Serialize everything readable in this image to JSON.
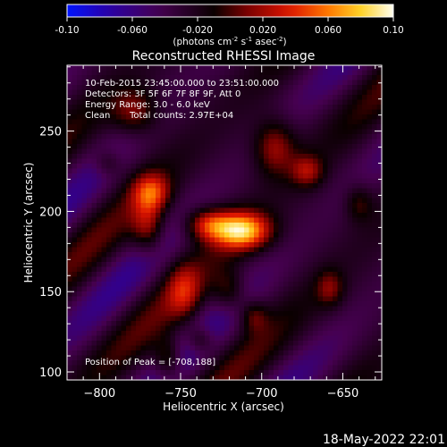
{
  "colorbar": {
    "ticks": [
      "-0.10",
      "-0.060",
      "-0.020",
      "0.020",
      "0.060",
      "0.10"
    ],
    "tick_values": [
      -0.1,
      -0.06,
      -0.02,
      0.02,
      0.06,
      0.1
    ],
    "range": [
      -0.1,
      0.1
    ],
    "units": "(photons cm",
    "units_exp1": "-2",
    "units_mid": " s",
    "units_exp2": "-1",
    "units_mid2": " asec",
    "units_exp3": "-2",
    "units_end": ")"
  },
  "title": "Reconstructed RHESSI Image",
  "info": {
    "time_range": "10-Feb-2015 23:45:00.000 to 23:51:00.000",
    "detectors": "Detectors: 3F 5F 6F 7F 8F 9F, Att 0",
    "energy": "Energy Range: 3.0 - 6.0 keV",
    "method": "Clean",
    "counts": "Total counts: 2.97E+04",
    "peak": "Position of Peak = [-708,188]"
  },
  "footer_timestamp": "18-May-2022 22:01",
  "chart_data": {
    "type": "heatmap",
    "title": "Reconstructed RHESSI Image",
    "xlabel": "Heliocentric X (arcsec)",
    "ylabel": "Heliocentric Y (arcsec)",
    "xlim": [
      -820,
      -626
    ],
    "ylim": [
      95,
      291
    ],
    "xticks": [
      -800,
      -750,
      -700,
      -650
    ],
    "yticks": [
      100,
      150,
      200,
      250
    ],
    "xtick_labels": [
      "−800",
      "−750",
      "−700",
      "−650"
    ],
    "ytick_labels": [
      "100",
      "150",
      "200",
      "250"
    ],
    "peak": [
      -708,
      188
    ],
    "peak_value": 0.1,
    "colormap": "red-temperature",
    "blobs": [
      {
        "x": -712,
        "y": 188,
        "sx": 12,
        "sy": 8,
        "v": 0.1
      },
      {
        "x": -733,
        "y": 192,
        "sx": 10,
        "sy": 7,
        "v": 0.06
      },
      {
        "x": -768,
        "y": 212,
        "sx": 8,
        "sy": 8,
        "v": 0.055
      },
      {
        "x": -770,
        "y": 190,
        "sx": 7,
        "sy": 12,
        "v": 0.045
      },
      {
        "x": -778,
        "y": 262,
        "sx": 10,
        "sy": 10,
        "v": 0.04
      },
      {
        "x": -692,
        "y": 240,
        "sx": 9,
        "sy": 12,
        "v": 0.045
      },
      {
        "x": -672,
        "y": 225,
        "sx": 7,
        "sy": 7,
        "v": 0.04
      },
      {
        "x": -748,
        "y": 150,
        "sx": 7,
        "sy": 12,
        "v": 0.035
      },
      {
        "x": -720,
        "y": 150,
        "sx": 7,
        "sy": 9,
        "v": 0.03
      },
      {
        "x": -705,
        "y": 135,
        "sx": 6,
        "sy": 7,
        "v": 0.03
      },
      {
        "x": -758,
        "y": 108,
        "sx": 6,
        "sy": 9,
        "v": 0.04
      },
      {
        "x": -738,
        "y": 120,
        "sx": 6,
        "sy": 6,
        "v": 0.03
      },
      {
        "x": -658,
        "y": 152,
        "sx": 6,
        "sy": 8,
        "v": 0.03
      },
      {
        "x": -640,
        "y": 205,
        "sx": 6,
        "sy": 8,
        "v": 0.025
      },
      {
        "x": -795,
        "y": 230,
        "sx": 6,
        "sy": 6,
        "v": 0.02
      }
    ],
    "background_level": -0.03,
    "ripple_amplitude": 0.035
  }
}
